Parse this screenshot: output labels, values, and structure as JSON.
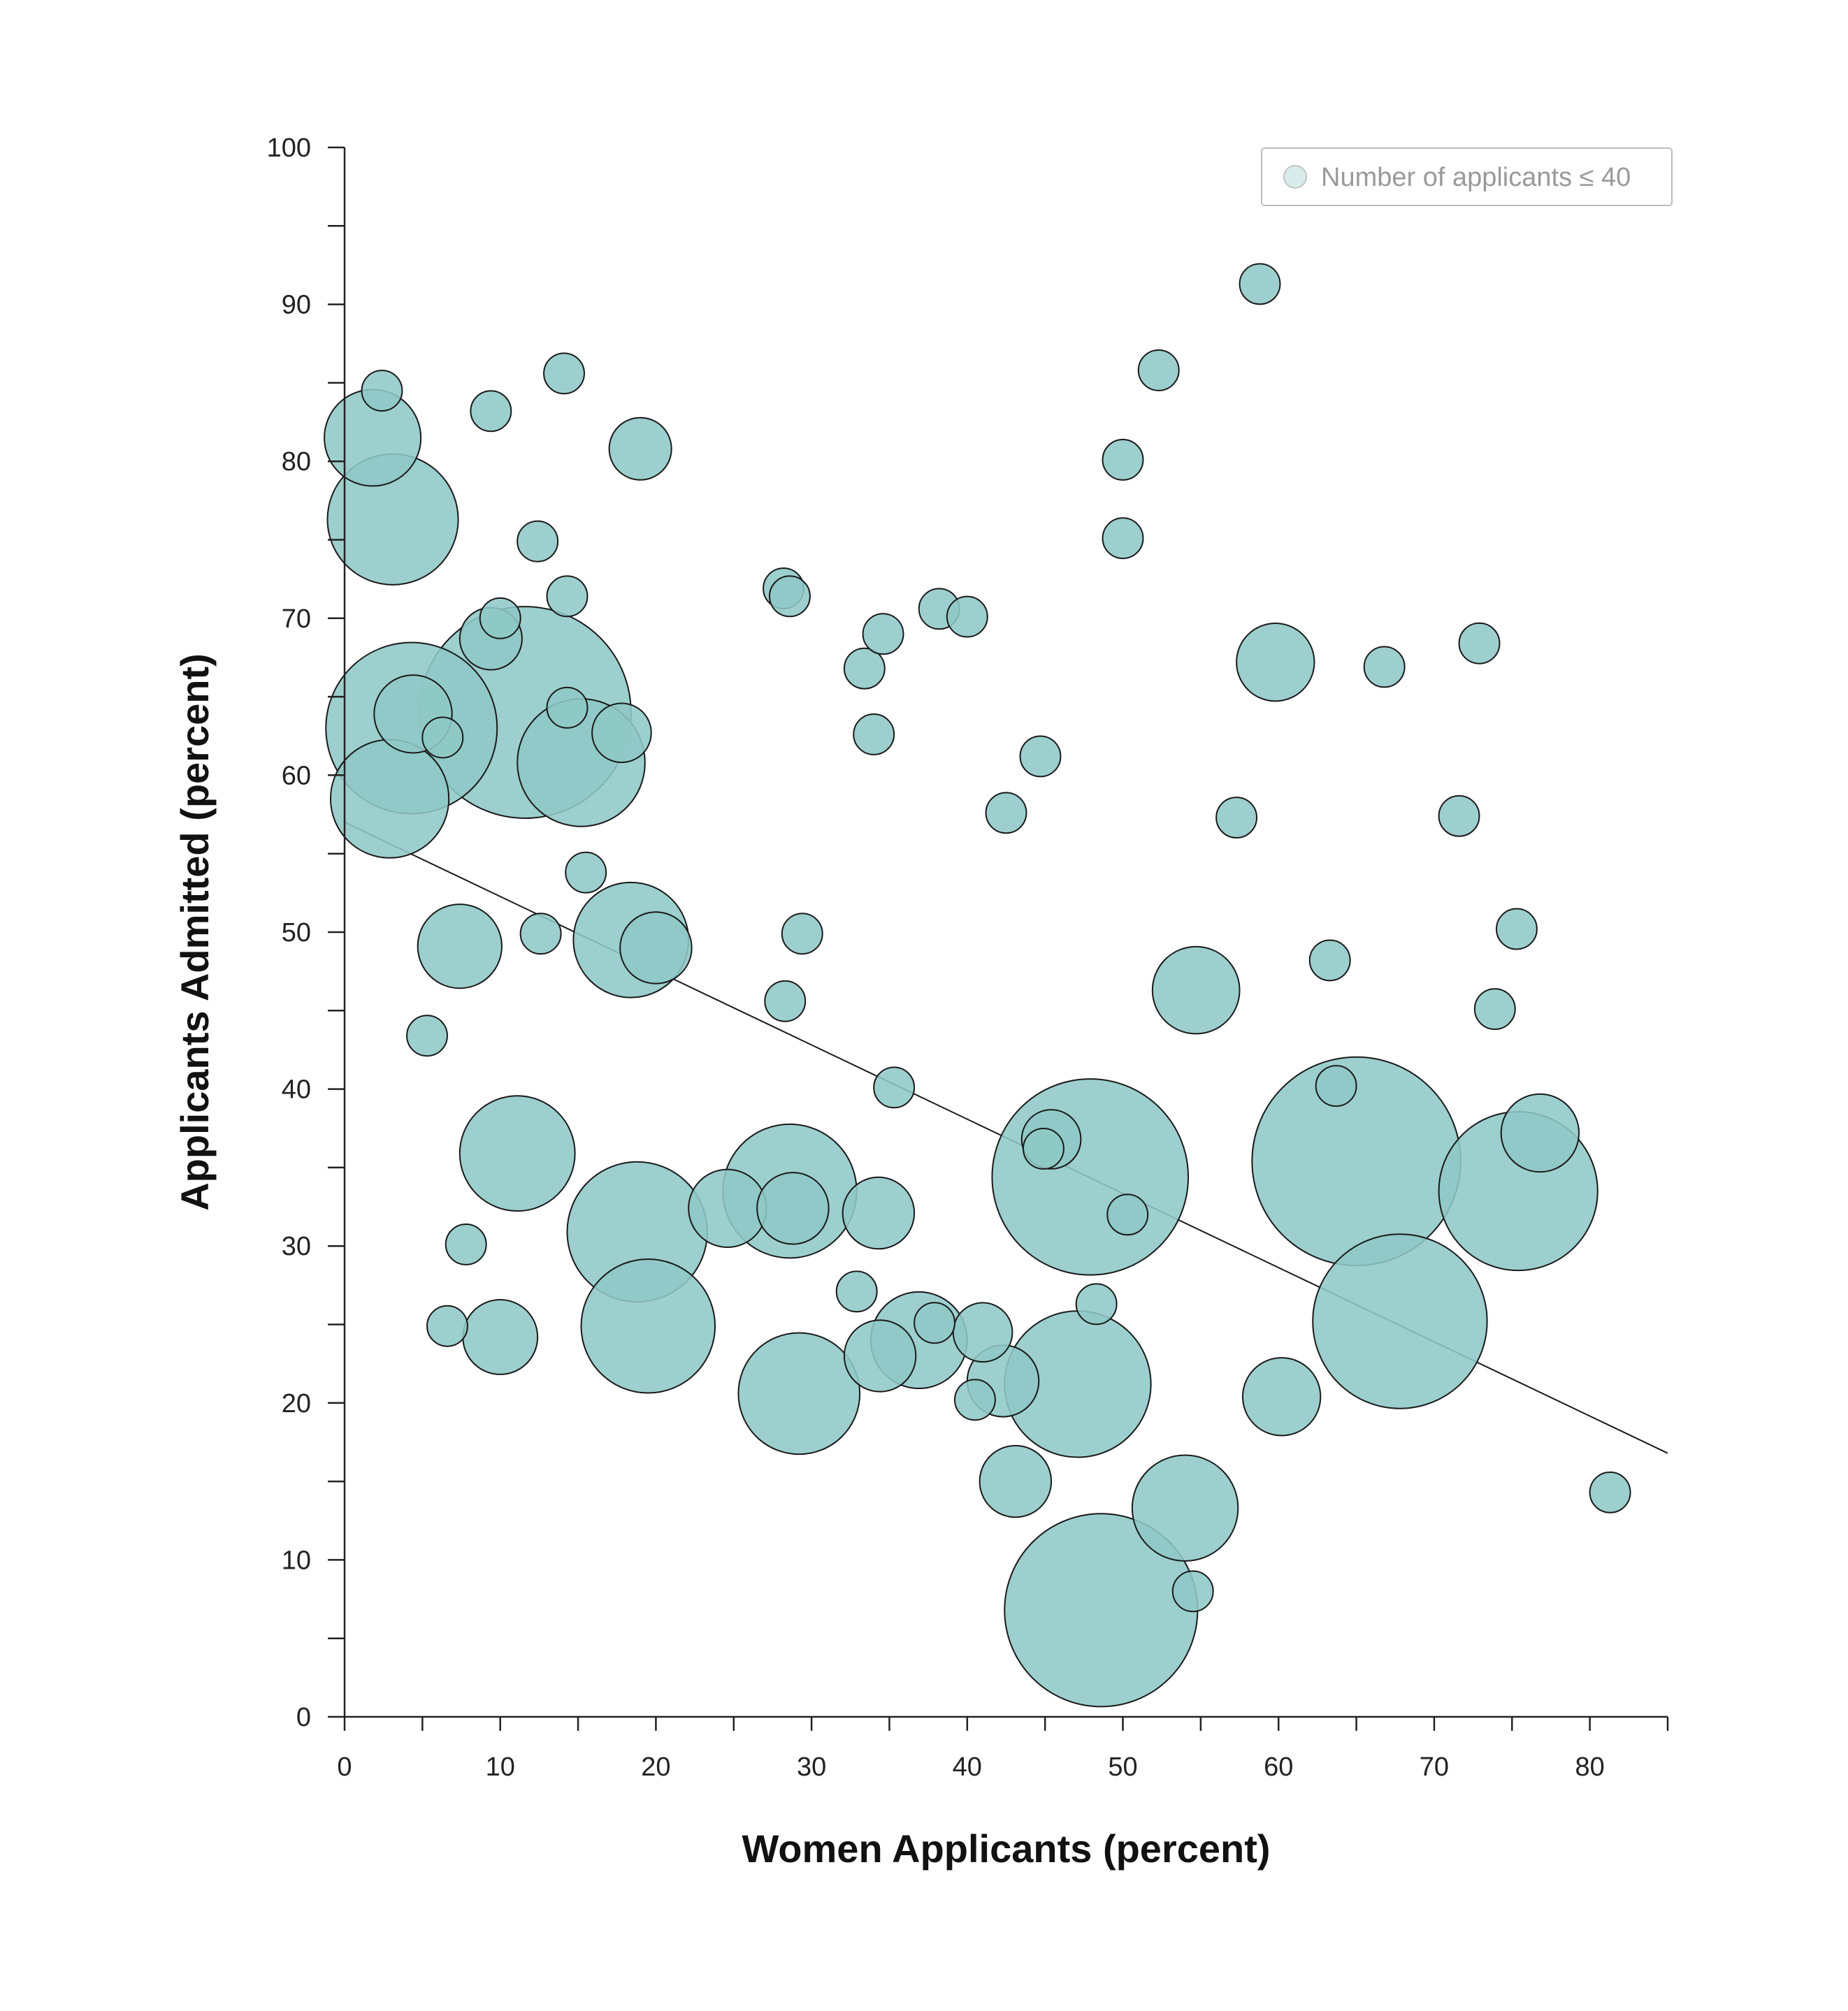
{
  "chart_data": {
    "type": "scatter",
    "subtype": "bubble",
    "title": "",
    "xlabel": "Women Applicants (percent)",
    "ylabel": "Applicants Admitted (percent)",
    "xlim": [
      0,
      85
    ],
    "ylim": [
      0,
      100
    ],
    "x_ticks": [
      0,
      10,
      20,
      30,
      40,
      50,
      60,
      70,
      80
    ],
    "y_ticks": [
      0,
      10,
      20,
      30,
      40,
      50,
      60,
      70,
      80,
      90,
      100
    ],
    "grid": false,
    "legend": {
      "position": "top-right",
      "entries": [
        "Number of applicants ≤ 40"
      ]
    },
    "colors": {
      "bubble_fill": "#8ec8c6",
      "bubble_stroke": "#1a1a1a",
      "trend_line": "#1a1a1a"
    },
    "trend_line": {
      "x": [
        0,
        85
      ],
      "y": [
        57.0,
        16.8
      ]
    },
    "series": [
      {
        "points": [
          {
            "x": 1.8,
            "y": 81.5,
            "r": 3.1
          },
          {
            "x": 2.4,
            "y": 84.5,
            "r": 1.3
          },
          {
            "x": 3.1,
            "y": 76.3,
            "r": 4.2
          },
          {
            "x": 4.3,
            "y": 63.0,
            "r": 5.5
          },
          {
            "x": 4.4,
            "y": 63.9,
            "r": 2.5
          },
          {
            "x": 2.9,
            "y": 58.5,
            "r": 3.8
          },
          {
            "x": 6.3,
            "y": 62.4,
            "r": 1.3
          },
          {
            "x": 5.3,
            "y": 43.4,
            "r": 1.3
          },
          {
            "x": 7.4,
            "y": 49.1,
            "r": 2.7
          },
          {
            "x": 7.8,
            "y": 30.1,
            "r": 1.3
          },
          {
            "x": 6.6,
            "y": 24.9,
            "r": 1.3
          },
          {
            "x": 9.4,
            "y": 83.2,
            "r": 1.3
          },
          {
            "x": 9.4,
            "y": 68.7,
            "r": 2.0
          },
          {
            "x": 10.0,
            "y": 70.0,
            "r": 1.3
          },
          {
            "x": 10.0,
            "y": 24.2,
            "r": 2.4
          },
          {
            "x": 11.1,
            "y": 35.9,
            "r": 3.7
          },
          {
            "x": 11.6,
            "y": 64.0,
            "r": 6.8
          },
          {
            "x": 12.4,
            "y": 74.9,
            "r": 1.3
          },
          {
            "x": 12.6,
            "y": 49.9,
            "r": 1.3
          },
          {
            "x": 14.1,
            "y": 85.6,
            "r": 1.3
          },
          {
            "x": 14.3,
            "y": 71.4,
            "r": 1.3
          },
          {
            "x": 14.3,
            "y": 64.3,
            "r": 1.3
          },
          {
            "x": 15.2,
            "y": 60.8,
            "r": 4.1
          },
          {
            "x": 15.5,
            "y": 53.8,
            "r": 1.3
          },
          {
            "x": 17.8,
            "y": 62.7,
            "r": 1.9
          },
          {
            "x": 18.4,
            "y": 49.5,
            "r": 3.7
          },
          {
            "x": 19.0,
            "y": 80.8,
            "r": 2.0
          },
          {
            "x": 18.8,
            "y": 30.9,
            "r": 4.5
          },
          {
            "x": 19.5,
            "y": 24.9,
            "r": 4.3
          },
          {
            "x": 20.0,
            "y": 49.0,
            "r": 2.3
          },
          {
            "x": 24.6,
            "y": 32.4,
            "r": 2.5
          },
          {
            "x": 28.2,
            "y": 71.9,
            "r": 1.3
          },
          {
            "x": 28.6,
            "y": 71.4,
            "r": 1.3
          },
          {
            "x": 28.3,
            "y": 45.6,
            "r": 1.3
          },
          {
            "x": 28.6,
            "y": 33.5,
            "r": 4.3
          },
          {
            "x": 28.8,
            "y": 32.4,
            "r": 2.3
          },
          {
            "x": 29.4,
            "y": 49.9,
            "r": 1.3
          },
          {
            "x": 29.2,
            "y": 20.6,
            "r": 3.9
          },
          {
            "x": 32.9,
            "y": 27.1,
            "r": 1.3
          },
          {
            "x": 33.4,
            "y": 66.8,
            "r": 1.3
          },
          {
            "x": 34.0,
            "y": 62.6,
            "r": 1.3
          },
          {
            "x": 34.6,
            "y": 69.0,
            "r": 1.3
          },
          {
            "x": 34.3,
            "y": 32.1,
            "r": 2.3
          },
          {
            "x": 34.4,
            "y": 23.0,
            "r": 2.3
          },
          {
            "x": 35.3,
            "y": 40.1,
            "r": 1.3
          },
          {
            "x": 36.9,
            "y": 24.0,
            "r": 3.1
          },
          {
            "x": 37.9,
            "y": 25.1,
            "r": 1.3
          },
          {
            "x": 38.2,
            "y": 70.6,
            "r": 1.3
          },
          {
            "x": 40.0,
            "y": 70.1,
            "r": 1.3
          },
          {
            "x": 40.5,
            "y": 20.2,
            "r": 1.3
          },
          {
            "x": 41.0,
            "y": 24.5,
            "r": 1.9
          },
          {
            "x": 42.3,
            "y": 21.4,
            "r": 2.3
          },
          {
            "x": 42.5,
            "y": 57.6,
            "r": 1.3
          },
          {
            "x": 43.1,
            "y": 15.0,
            "r": 2.3
          },
          {
            "x": 44.7,
            "y": 61.2,
            "r": 1.3
          },
          {
            "x": 44.9,
            "y": 36.2,
            "r": 1.3
          },
          {
            "x": 45.4,
            "y": 36.8,
            "r": 1.9
          },
          {
            "x": 47.1,
            "y": 21.2,
            "r": 4.7
          },
          {
            "x": 47.9,
            "y": 34.4,
            "r": 6.3
          },
          {
            "x": 48.3,
            "y": 26.3,
            "r": 1.3
          },
          {
            "x": 48.6,
            "y": 6.8,
            "r": 6.2
          },
          {
            "x": 50.0,
            "y": 80.1,
            "r": 1.3
          },
          {
            "x": 50.0,
            "y": 75.1,
            "r": 1.3
          },
          {
            "x": 50.3,
            "y": 32.0,
            "r": 1.3
          },
          {
            "x": 52.3,
            "y": 85.8,
            "r": 1.3
          },
          {
            "x": 54.0,
            "y": 13.3,
            "r": 3.4
          },
          {
            "x": 54.5,
            "y": 8.0,
            "r": 1.3
          },
          {
            "x": 54.7,
            "y": 46.3,
            "r": 2.8
          },
          {
            "x": 57.3,
            "y": 57.3,
            "r": 1.3
          },
          {
            "x": 58.8,
            "y": 91.3,
            "r": 1.3
          },
          {
            "x": 59.8,
            "y": 67.2,
            "r": 2.5
          },
          {
            "x": 60.2,
            "y": 20.4,
            "r": 2.5
          },
          {
            "x": 63.3,
            "y": 48.2,
            "r": 1.3
          },
          {
            "x": 63.7,
            "y": 40.2,
            "r": 1.3
          },
          {
            "x": 65.0,
            "y": 35.4,
            "r": 6.7
          },
          {
            "x": 66.8,
            "y": 66.9,
            "r": 1.3
          },
          {
            "x": 67.8,
            "y": 25.2,
            "r": 5.6
          },
          {
            "x": 71.6,
            "y": 57.4,
            "r": 1.3
          },
          {
            "x": 72.9,
            "y": 68.4,
            "r": 1.3
          },
          {
            "x": 73.9,
            "y": 45.1,
            "r": 1.3
          },
          {
            "x": 75.3,
            "y": 50.2,
            "r": 1.3
          },
          {
            "x": 75.4,
            "y": 33.5,
            "r": 5.1
          },
          {
            "x": 76.8,
            "y": 37.2,
            "r": 2.5
          },
          {
            "x": 81.3,
            "y": 14.3,
            "r": 1.3
          }
        ]
      }
    ]
  }
}
